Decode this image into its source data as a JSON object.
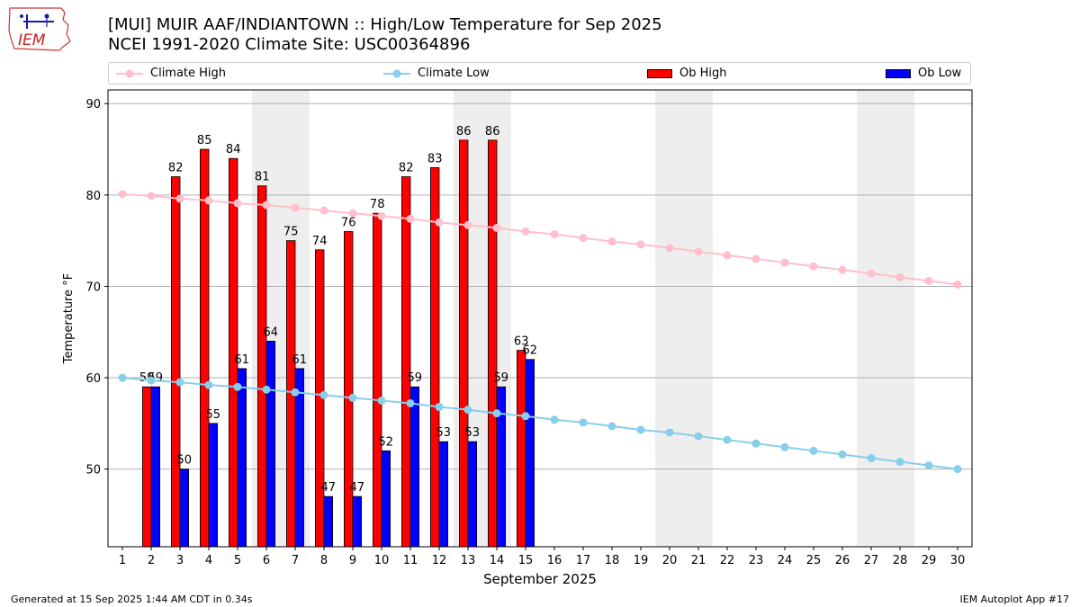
{
  "header": {
    "title_line1": "[MUI] MUIR AAF/INDIANTOWN :: High/Low Temperature for Sep 2025",
    "title_line2": "NCEI 1991-2020 Climate Site: USC00364896",
    "logo_text": "IEM"
  },
  "legend": {
    "climate_high": "Climate High",
    "climate_low": "Climate Low",
    "ob_high": "Ob High",
    "ob_low": "Ob Low"
  },
  "footer": {
    "generated": "Generated at 15 Sep 2025 1:44 AM CDT in 0.34s",
    "app": "IEM Autoplot App #17"
  },
  "colors": {
    "ob_high": "#ff0000",
    "ob_low": "#0000ff",
    "climate_high": "#ffc0cb",
    "climate_low": "#87ceeb",
    "weekend": "#eeeeee",
    "grid": "#b0b0b0"
  },
  "chart_data": {
    "type": "bar",
    "title": "[MUI] MUIR AAF/INDIANTOWN :: High/Low Temperature for Sep 2025",
    "xlabel": "September 2025",
    "ylabel": "Temperature °F",
    "xlim": [
      0.5,
      30.5
    ],
    "ylim": [
      41.5,
      91.5
    ],
    "yticks": [
      50,
      60,
      70,
      80,
      90
    ],
    "days": [
      1,
      2,
      3,
      4,
      5,
      6,
      7,
      8,
      9,
      10,
      11,
      12,
      13,
      14,
      15,
      16,
      17,
      18,
      19,
      20,
      21,
      22,
      23,
      24,
      25,
      26,
      27,
      28,
      29,
      30
    ],
    "weekend_ranges": [
      [
        5.5,
        7.5
      ],
      [
        12.5,
        14.5
      ],
      [
        19.5,
        21.5
      ],
      [
        26.5,
        28.5
      ]
    ],
    "series": [
      {
        "name": "Ob High",
        "kind": "bar",
        "days": [
          2,
          3,
          4,
          5,
          6,
          7,
          8,
          9,
          10,
          11,
          12,
          13,
          14,
          15
        ],
        "values": [
          59,
          82,
          85,
          84,
          81,
          75,
          74,
          76,
          78,
          82,
          83,
          86,
          86,
          63
        ],
        "labels": [
          "59",
          "82",
          "85",
          "84",
          "81",
          "75",
          "74",
          "76",
          "78",
          "82",
          "83",
          "86",
          "86",
          "63"
        ]
      },
      {
        "name": "Ob Low",
        "kind": "bar",
        "days": [
          2,
          3,
          4,
          5,
          6,
          7,
          8,
          9,
          10,
          11,
          12,
          13,
          14,
          15
        ],
        "values": [
          59,
          50,
          55,
          61,
          64,
          61,
          47,
          47,
          52,
          59,
          53,
          53,
          59,
          62
        ],
        "labels": [
          "59",
          "50",
          "55",
          "61",
          "64",
          "61",
          "47",
          "47",
          "52",
          "59",
          "53",
          "53",
          "59",
          "62"
        ]
      },
      {
        "name": "Climate High",
        "kind": "line",
        "values": [
          80.1,
          79.9,
          79.6,
          79.4,
          79.1,
          78.9,
          78.6,
          78.3,
          78.0,
          77.7,
          77.4,
          77.0,
          76.7,
          76.4,
          76.0,
          75.7,
          75.3,
          74.9,
          74.6,
          74.2,
          73.8,
          73.4,
          73.0,
          72.6,
          72.2,
          71.8,
          71.4,
          71.0,
          70.6,
          70.2
        ]
      },
      {
        "name": "Climate Low",
        "kind": "line",
        "values": [
          60.0,
          59.7,
          59.5,
          59.2,
          59.0,
          58.7,
          58.4,
          58.1,
          57.8,
          57.5,
          57.2,
          56.8,
          56.5,
          56.1,
          55.8,
          55.4,
          55.1,
          54.7,
          54.3,
          54.0,
          53.6,
          53.2,
          52.8,
          52.4,
          52.0,
          51.6,
          51.2,
          50.8,
          50.4,
          50.0
        ]
      }
    ]
  }
}
